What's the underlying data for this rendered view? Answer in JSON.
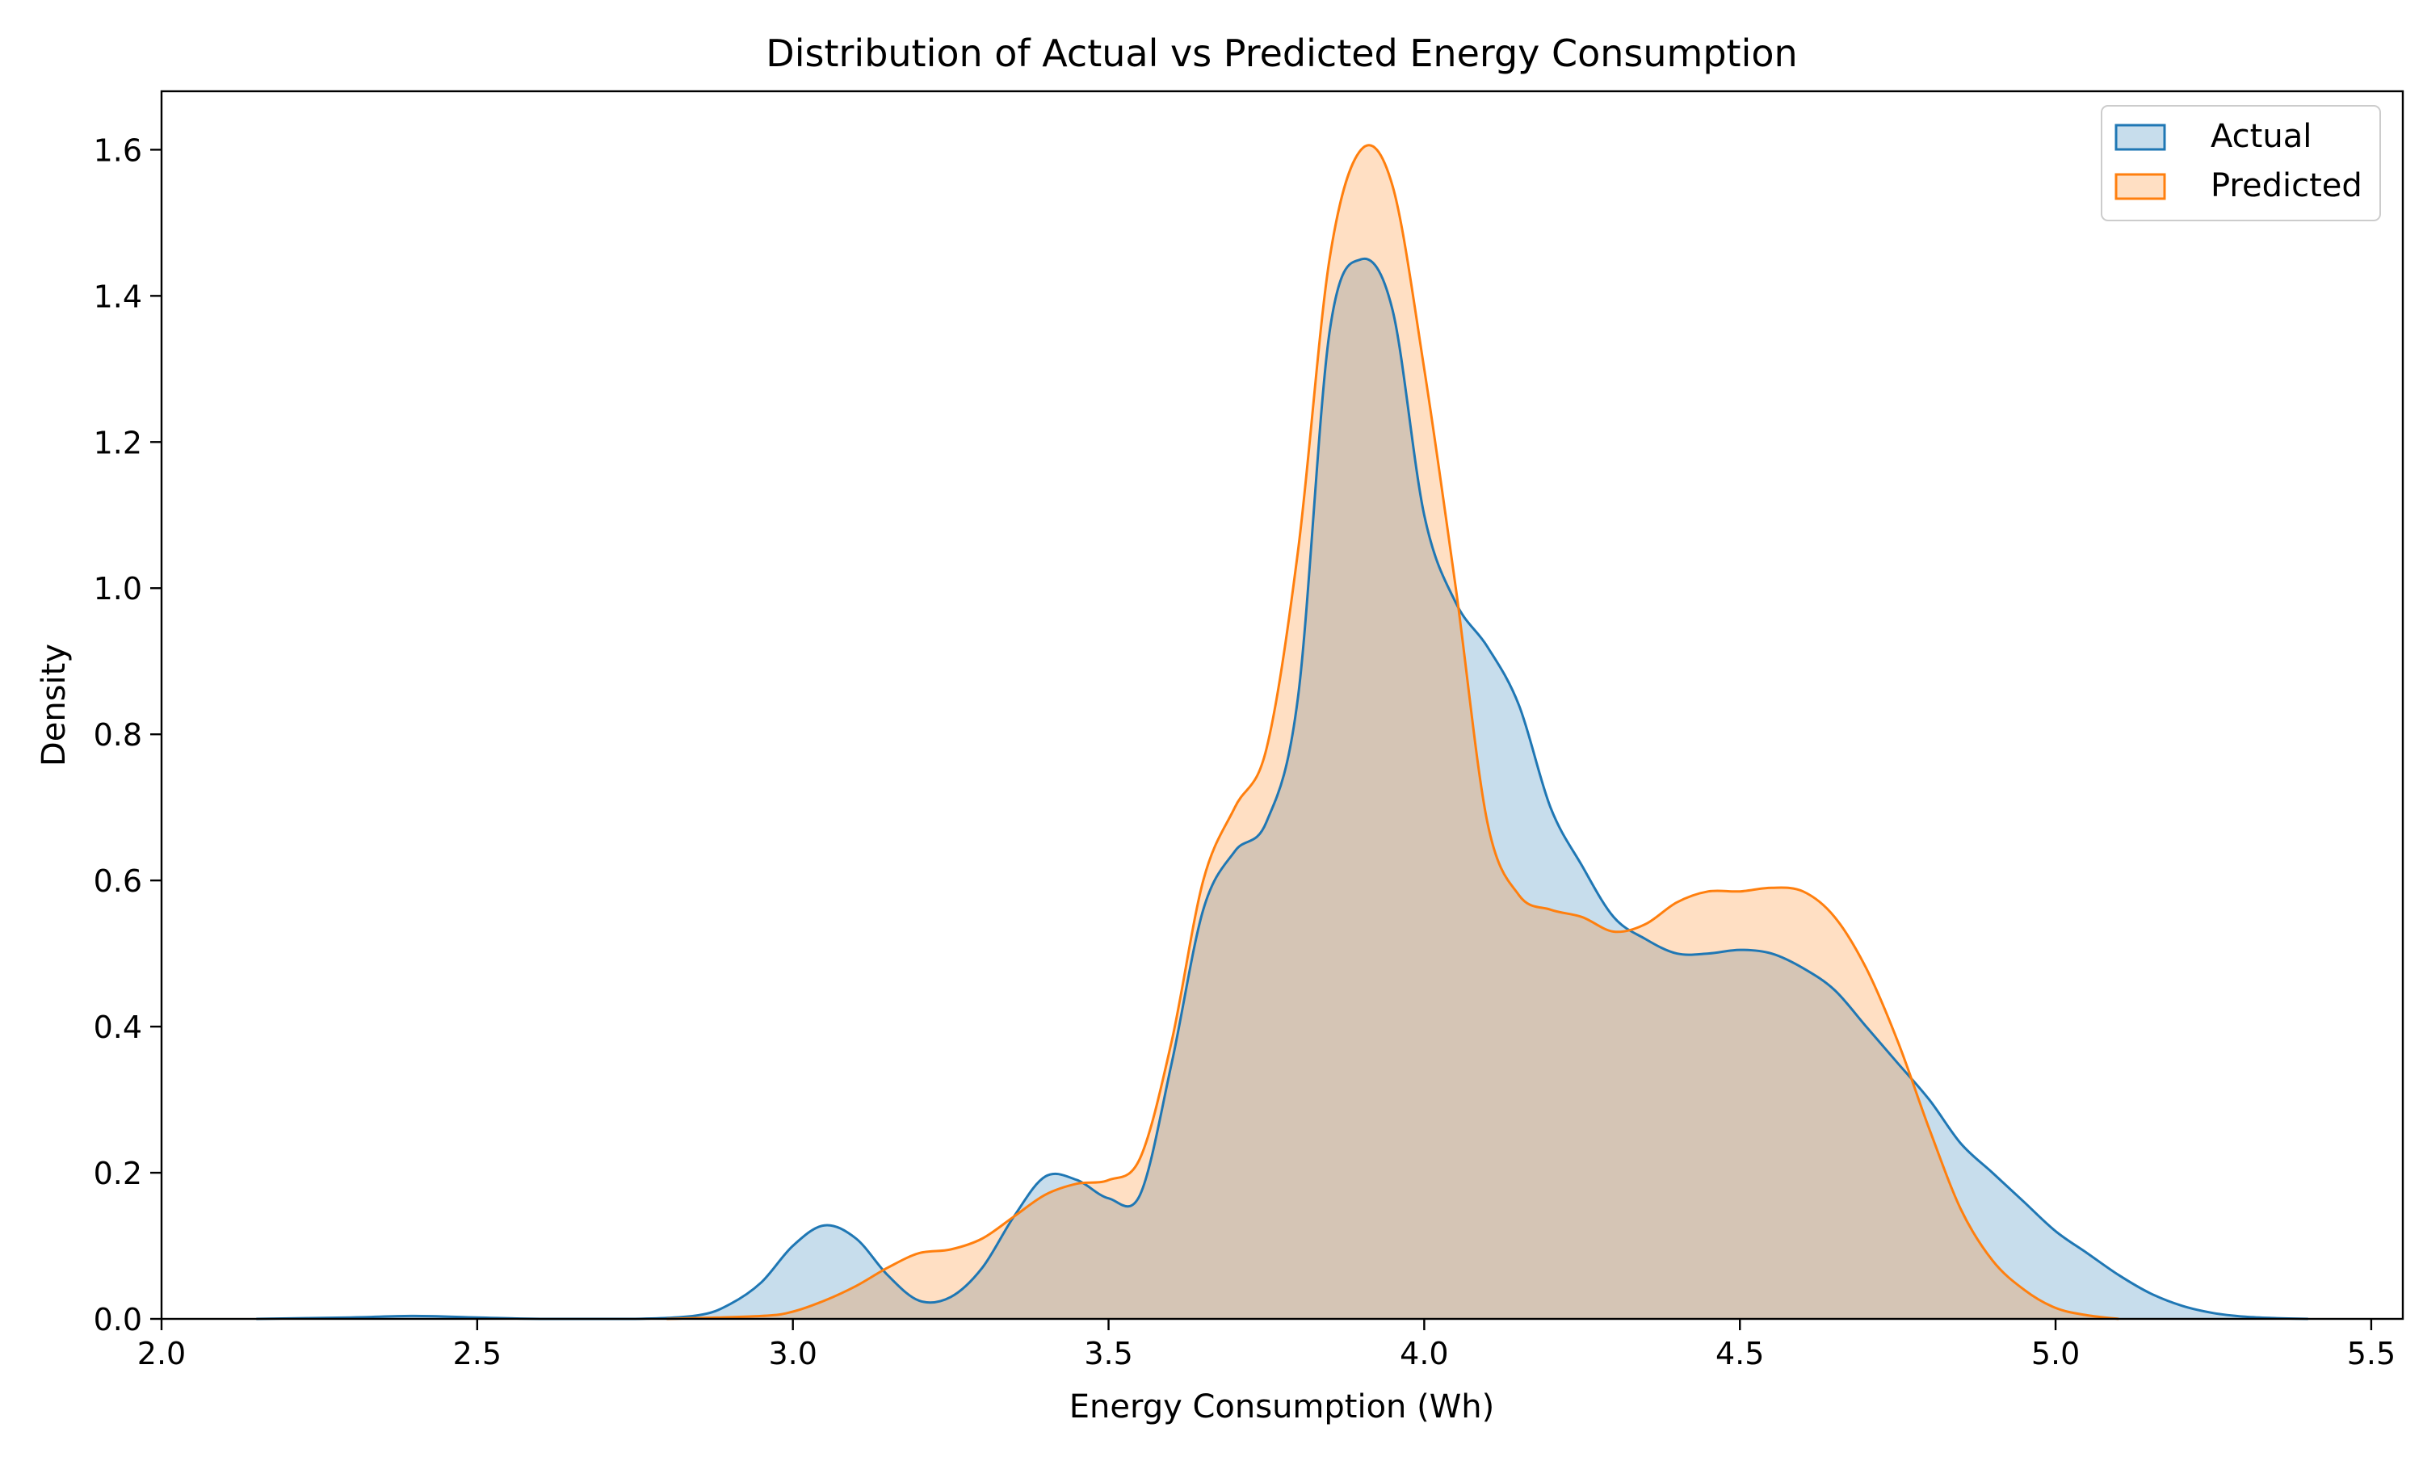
{
  "chart_data": {
    "type": "area",
    "title": "Distribution of Actual vs Predicted Energy Consumption",
    "xlabel": "Energy Consumption (Wh)",
    "ylabel": "Density",
    "xlim": [
      2.0,
      5.55
    ],
    "ylim": [
      0.0,
      1.68
    ],
    "xticks": [
      2.0,
      2.5,
      3.0,
      3.5,
      4.0,
      4.5,
      5.0,
      5.5
    ],
    "xtick_labels": [
      "2.0",
      "2.5",
      "3.0",
      "3.5",
      "4.0",
      "4.5",
      "5.0",
      "5.5"
    ],
    "yticks": [
      0.0,
      0.2,
      0.4,
      0.6,
      0.8,
      1.0,
      1.2,
      1.4,
      1.6
    ],
    "ytick_labels": [
      "0.0",
      "0.2",
      "0.4",
      "0.6",
      "0.8",
      "1.0",
      "1.2",
      "1.4",
      "1.6"
    ],
    "grid": false,
    "legend_position": "top-right",
    "series": [
      {
        "name": "Actual",
        "color": "#1f77b4",
        "x": [
          2.15,
          2.3,
          2.4,
          2.5,
          2.6,
          2.75,
          2.85,
          2.9,
          2.95,
          3.0,
          3.05,
          3.1,
          3.15,
          3.2,
          3.25,
          3.3,
          3.35,
          3.4,
          3.45,
          3.5,
          3.55,
          3.6,
          3.65,
          3.7,
          3.75,
          3.8,
          3.85,
          3.9,
          3.95,
          4.0,
          4.05,
          4.1,
          4.15,
          4.2,
          4.25,
          4.3,
          4.35,
          4.4,
          4.45,
          4.5,
          4.55,
          4.6,
          4.65,
          4.7,
          4.75,
          4.8,
          4.85,
          4.9,
          4.95,
          5.0,
          5.05,
          5.1,
          5.15,
          5.2,
          5.25,
          5.3,
          5.35,
          5.4
        ],
        "y": [
          0.0,
          0.002,
          0.004,
          0.002,
          0.0,
          0.0,
          0.005,
          0.02,
          0.05,
          0.1,
          0.128,
          0.11,
          0.06,
          0.025,
          0.03,
          0.07,
          0.14,
          0.195,
          0.19,
          0.165,
          0.17,
          0.35,
          0.56,
          0.64,
          0.68,
          0.85,
          1.35,
          1.45,
          1.38,
          1.1,
          0.98,
          0.92,
          0.84,
          0.7,
          0.62,
          0.55,
          0.52,
          0.5,
          0.5,
          0.505,
          0.5,
          0.48,
          0.45,
          0.4,
          0.35,
          0.3,
          0.24,
          0.2,
          0.16,
          0.12,
          0.09,
          0.06,
          0.035,
          0.018,
          0.008,
          0.003,
          0.001,
          0.0
        ]
      },
      {
        "name": "Predicted",
        "color": "#ff7f0e",
        "x": [
          2.8,
          2.95,
          3.0,
          3.05,
          3.1,
          3.15,
          3.2,
          3.25,
          3.3,
          3.35,
          3.4,
          3.45,
          3.5,
          3.55,
          3.6,
          3.65,
          3.7,
          3.75,
          3.8,
          3.85,
          3.9,
          3.95,
          4.0,
          4.05,
          4.1,
          4.15,
          4.2,
          4.25,
          4.3,
          4.35,
          4.4,
          4.45,
          4.5,
          4.55,
          4.6,
          4.65,
          4.7,
          4.75,
          4.8,
          4.85,
          4.9,
          4.95,
          5.0,
          5.05,
          5.1
        ],
        "y": [
          0.0,
          0.004,
          0.01,
          0.025,
          0.045,
          0.07,
          0.09,
          0.095,
          0.11,
          0.14,
          0.17,
          0.185,
          0.19,
          0.22,
          0.38,
          0.6,
          0.7,
          0.78,
          1.05,
          1.45,
          1.6,
          1.55,
          1.3,
          1.0,
          0.68,
          0.58,
          0.56,
          0.55,
          0.53,
          0.54,
          0.57,
          0.585,
          0.585,
          0.59,
          0.585,
          0.55,
          0.48,
          0.38,
          0.26,
          0.15,
          0.08,
          0.04,
          0.015,
          0.005,
          0.0
        ]
      }
    ]
  }
}
